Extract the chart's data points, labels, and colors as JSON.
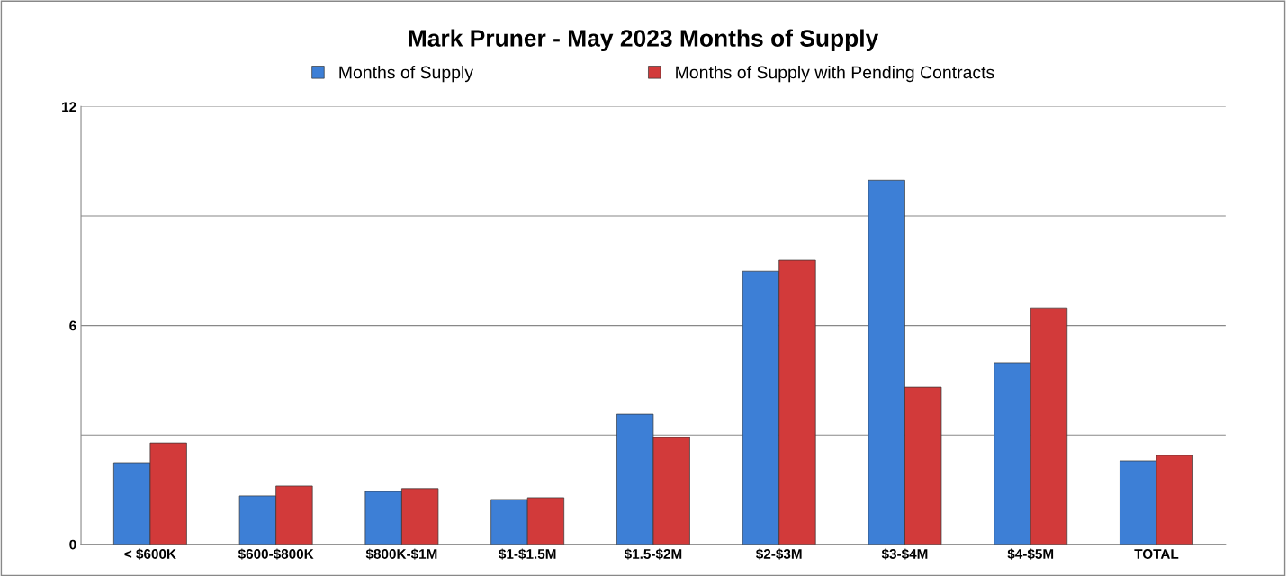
{
  "chart_data": {
    "type": "bar",
    "title": "Mark Pruner - May 2023 Months of Supply",
    "categories": [
      "< $600K",
      "$600-$800K",
      "$800K-$1M",
      "$1-$1.5M",
      "$1.5-$2M",
      "$2-$3M",
      "$3-$4M",
      "$4-$5M",
      "TOTAL"
    ],
    "series": [
      {
        "name": "Months of Supply",
        "color": "#3d7fd6",
        "values": [
          2.24,
          1.33,
          1.45,
          1.23,
          3.57,
          7.49,
          9.98,
          4.98,
          2.29
        ]
      },
      {
        "name": "Months of Supply with Pending Contracts",
        "color": "#d23a3a",
        "values": [
          2.78,
          1.6,
          1.53,
          1.28,
          2.93,
          7.79,
          4.31,
          6.48,
          2.44
        ]
      }
    ],
    "ylim": [
      0,
      12
    ],
    "yticks": [
      0,
      {
        "value": 3,
        "label": null
      },
      6,
      {
        "value": 9,
        "label": null
      },
      12
    ],
    "grid": "y",
    "legend": "top"
  }
}
